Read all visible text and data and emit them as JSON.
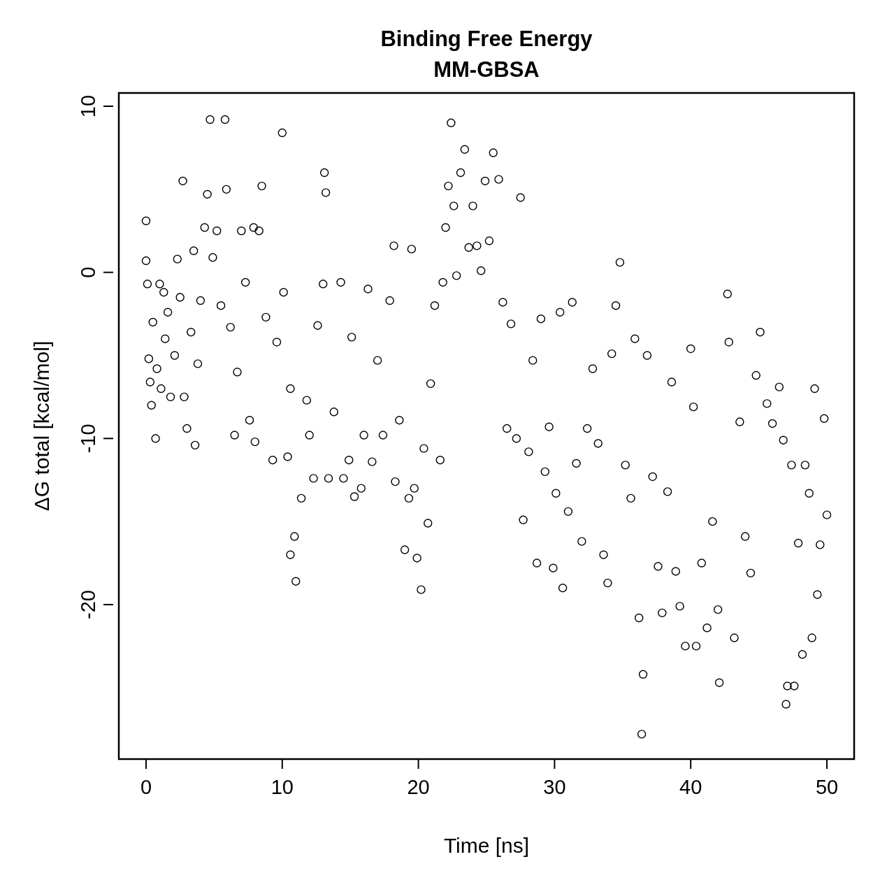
{
  "chart_data": {
    "type": "scatter",
    "title": "Binding Free Energy",
    "subtitle": "MM-GBSA",
    "xlabel": "Time [ns]",
    "ylabel": "ΔG total [kcal/mol]",
    "xlim": [
      -2,
      52
    ],
    "xticks": [
      0,
      10,
      20,
      30,
      40,
      50
    ],
    "ylim": [
      -29.3,
      10.8
    ],
    "yticks": [
      -20,
      -10,
      0,
      10
    ],
    "grid": false,
    "legend": false,
    "marker": "circle",
    "series": [
      {
        "color": "#000000",
        "x": [
          0,
          0,
          0.1,
          0.2,
          0.3,
          0.4,
          0.5,
          0.7,
          0.8,
          1,
          1.1,
          1.3,
          1.4,
          1.6,
          1.8,
          2.1,
          2.3,
          2.5,
          2.7,
          2.8,
          3,
          3.3,
          3.5,
          3.6,
          3.8,
          4,
          4.3,
          4.5,
          4.7,
          4.9,
          5.2,
          5.5,
          5.8,
          5.9,
          6.2,
          6.5,
          6.7,
          7,
          7.3,
          7.6,
          7.9,
          8,
          8.3,
          8.5,
          8.8,
          9.3,
          9.6,
          10,
          10.1,
          10.4,
          10.6,
          10.6,
          10.9,
          11,
          11.4,
          11.8,
          12,
          12.3,
          12.6,
          13,
          13.1,
          13.2,
          13.4,
          13.8,
          14.3,
          14.5,
          14.9,
          15.1,
          15.3,
          15.8,
          16,
          16.3,
          16.6,
          17,
          17.4,
          17.9,
          18.2,
          18.3,
          18.6,
          19,
          19.3,
          19.5,
          19.7,
          19.9,
          20.2,
          20.4,
          20.7,
          20.9,
          21.2,
          21.6,
          21.8,
          22,
          22.2,
          22.4,
          22.6,
          22.8,
          23.1,
          23.4,
          23.7,
          24,
          24.3,
          24.6,
          24.9,
          25.2,
          25.5,
          25.9,
          26.2,
          26.5,
          26.8,
          27.2,
          27.5,
          27.7,
          28.1,
          28.4,
          28.7,
          29,
          29.3,
          29.6,
          29.9,
          30.1,
          30.4,
          30.6,
          31,
          31.3,
          31.6,
          32,
          32.4,
          32.8,
          33.2,
          33.6,
          33.9,
          34.2,
          34.5,
          34.8,
          35.2,
          35.6,
          35.9,
          36.2,
          36.4,
          36.5,
          36.8,
          37.2,
          37.6,
          37.9,
          38.3,
          38.6,
          38.9,
          39.2,
          39.6,
          40,
          40.2,
          40.4,
          40.8,
          41.2,
          41.6,
          42,
          42.1,
          42.7,
          42.8,
          43.2,
          43.6,
          44,
          44.4,
          44.8,
          45.1,
          45.6,
          46,
          46.5,
          46.8,
          47,
          47.1,
          47.4,
          47.6,
          47.9,
          48.2,
          48.4,
          48.7,
          48.9,
          49.1,
          49.3,
          49.5,
          49.8,
          50
        ],
        "values": [
          0.7,
          3.1,
          -0.7,
          -5.2,
          -6.6,
          -8,
          -3,
          -10,
          -5.8,
          -0.7,
          -7,
          -1.2,
          -4,
          -2.4,
          -7.5,
          -5,
          0.8,
          -1.5,
          5.5,
          -7.5,
          -9.4,
          -3.6,
          1.3,
          -10.4,
          -5.5,
          -1.7,
          2.7,
          4.7,
          9.2,
          0.9,
          2.5,
          -2,
          9.2,
          5,
          -3.3,
          -9.8,
          -6,
          2.5,
          -0.6,
          -8.9,
          2.7,
          -10.2,
          2.5,
          5.2,
          -2.7,
          -11.3,
          -4.2,
          8.4,
          -1.2,
          -11.1,
          -7,
          -17,
          -15.9,
          -18.6,
          -13.6,
          -7.7,
          -9.8,
          -12.4,
          -3.2,
          -0.7,
          6,
          4.8,
          -12.4,
          -8.4,
          -0.6,
          -12.4,
          -11.3,
          -3.9,
          -13.5,
          -13,
          -9.8,
          -1,
          -11.4,
          -5.3,
          -9.8,
          -1.7,
          1.6,
          -12.6,
          -8.9,
          -16.7,
          -13.6,
          1.4,
          -13,
          -17.2,
          -19.1,
          -10.6,
          -15.1,
          -6.7,
          -2,
          -11.3,
          -0.6,
          2.7,
          5.2,
          9,
          4,
          -0.2,
          6,
          7.4,
          1.5,
          4,
          1.6,
          0.1,
          5.5,
          1.9,
          7.2,
          5.6,
          -1.8,
          -9.4,
          -3.1,
          -10,
          4.5,
          -14.9,
          -10.8,
          -5.3,
          -17.5,
          -2.8,
          -12,
          -9.3,
          -17.8,
          -13.3,
          -2.4,
          -19,
          -14.4,
          -1.8,
          -11.5,
          -16.2,
          -9.4,
          -5.8,
          -10.3,
          -17,
          -18.7,
          -4.9,
          -2,
          0.6,
          -11.6,
          -13.6,
          -4,
          -20.8,
          -27.8,
          -24.2,
          -5,
          -12.3,
          -17.7,
          -20.5,
          -13.2,
          -6.6,
          -18,
          -20.1,
          -22.5,
          -4.6,
          -8.1,
          -22.5,
          -17.5,
          -21.4,
          -15,
          -20.3,
          -24.7,
          -1.3,
          -4.2,
          -22,
          -9,
          -15.9,
          -18.1,
          -6.2,
          -3.6,
          -7.9,
          -9.1,
          -6.9,
          -10.1,
          -26,
          -24.9,
          -11.6,
          -24.9,
          -16.3,
          -23,
          -11.6,
          -13.3,
          -22,
          -7,
          -19.4,
          -16.4,
          -8.8,
          -14.6
        ]
      }
    ]
  }
}
